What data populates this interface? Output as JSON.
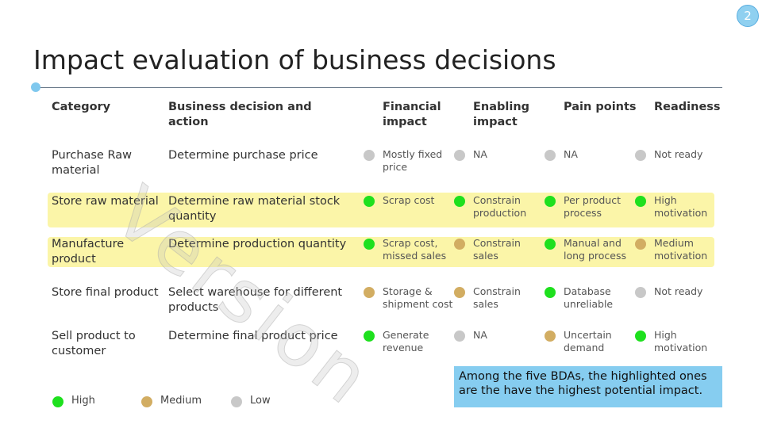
{
  "page_number": "2",
  "title": "Impact evaluation of business decisions",
  "watermark": "Version",
  "legend": [
    {
      "label": "High",
      "color": "#1ee01e"
    },
    {
      "label": "Medium",
      "color": "#d2ad62"
    },
    {
      "label": "Low",
      "color": "#c8c8c8"
    }
  ],
  "table": {
    "headers": [
      "Category",
      "Business decision and action",
      "Financial impact",
      "Enabling impact",
      "Pain points",
      "Readiness"
    ],
    "rows": [
      {
        "highlighted": false,
        "category": "Purchase Raw material",
        "decision": "Determine purchase price",
        "ratings": [
          {
            "level": 2,
            "text": "Mostly fixed price"
          },
          {
            "level": 2,
            "text": "NA"
          },
          {
            "level": 2,
            "text": "NA"
          },
          {
            "level": 2,
            "text": "Not ready"
          }
        ]
      },
      {
        "highlighted": true,
        "category": "Store raw material",
        "decision": "Determine raw material stock quantity",
        "ratings": [
          {
            "level": 0,
            "text": "Scrap cost"
          },
          {
            "level": 0,
            "text": "Constrain production"
          },
          {
            "level": 0,
            "text": "Per product process"
          },
          {
            "level": 0,
            "text": "High motivation"
          }
        ]
      },
      {
        "highlighted": true,
        "category": "Manufacture product",
        "decision": "Determine production quantity",
        "ratings": [
          {
            "level": 0,
            "text": "Scrap cost, missed sales"
          },
          {
            "level": 1,
            "text": "Constrain sales"
          },
          {
            "level": 0,
            "text": "Manual and long process"
          },
          {
            "level": 1,
            "text": "Medium motivation"
          }
        ]
      },
      {
        "highlighted": false,
        "category": "Store final product",
        "decision": "Select warehouse for different products",
        "ratings": [
          {
            "level": 1,
            "text": "Storage & shipment cost"
          },
          {
            "level": 1,
            "text": "Constrain sales"
          },
          {
            "level": 0,
            "text": "Database unreliable"
          },
          {
            "level": 2,
            "text": "Not ready"
          }
        ]
      },
      {
        "highlighted": false,
        "category": "Sell product to customer",
        "decision": "Determine final product price",
        "ratings": [
          {
            "level": 0,
            "text": "Generate revenue"
          },
          {
            "level": 2,
            "text": "NA"
          },
          {
            "level": 1,
            "text": "Uncertain demand"
          },
          {
            "level": 0,
            "text": "High motivation"
          }
        ]
      }
    ]
  },
  "callout": "Among the five BDAs, the highlighted ones are the have the highest potential impact."
}
